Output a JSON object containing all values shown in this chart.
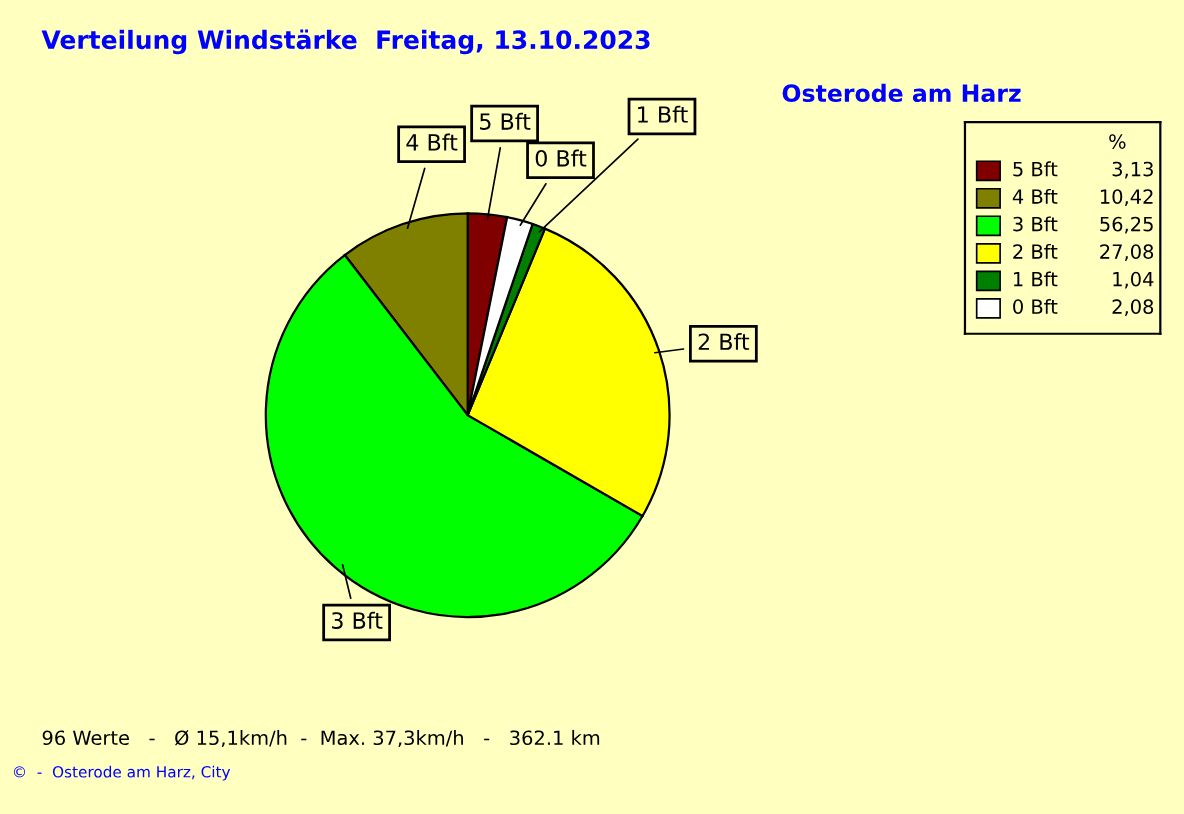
{
  "chart_data": {
    "type": "pie",
    "title": "Verteilung Windstärke  Freitag, 13.10.2023",
    "subtitle": "Osterode am Harz",
    "legend_title": "%",
    "categories": [
      "5 Bft",
      "4 Bft",
      "3 Bft",
      "2 Bft",
      "1 Bft",
      "0 Bft"
    ],
    "values": [
      3.13,
      10.42,
      56.25,
      27.08,
      1.04,
      2.08
    ],
    "value_labels": [
      "3,13",
      "10,42",
      "56,25",
      "27,08",
      "1,04",
      "2,08"
    ],
    "colors": [
      "#800000",
      "#808000",
      "#00ff00",
      "#ffff00",
      "#008000",
      "#ffffff"
    ],
    "legend": "top right",
    "annotations": [
      "96 Werte   -   Ø 15,1km/h  -  Max. 37,3km/h   -   362.1 km",
      "©  -  Osterode am Harz, City"
    ]
  }
}
